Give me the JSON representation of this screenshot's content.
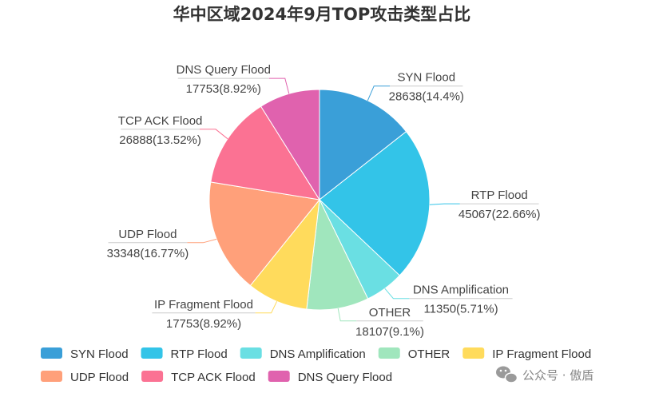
{
  "chart_data": {
    "type": "pie",
    "title": "华中区域2024年9月TOP攻击类型占比",
    "slices": [
      {
        "name": "SYN Flood",
        "value": 28638,
        "percent_label": "14.4%",
        "color": "#3a9fd8"
      },
      {
        "name": "RTP Flood",
        "value": 45067,
        "percent_label": "22.66%",
        "color": "#33c4e8"
      },
      {
        "name": "DNS Amplification",
        "value": 11350,
        "percent_label": "5.71%",
        "color": "#6adfe3"
      },
      {
        "name": "OTHER",
        "value": 18107,
        "percent_label": "9.1%",
        "color": "#a0e6bd"
      },
      {
        "name": "IP Fragment Flood",
        "value": 17753,
        "percent_label": "8.92%",
        "color": "#ffdb5c"
      },
      {
        "name": "UDP Flood",
        "value": 33348,
        "percent_label": "16.77%",
        "color": "#ffa07a"
      },
      {
        "name": "TCP ACK Flood",
        "value": 26888,
        "percent_label": "13.52%",
        "color": "#fb7293"
      },
      {
        "name": "DNS Query Flood",
        "value": 17753,
        "percent_label": "8.92%",
        "color": "#e062ae"
      }
    ],
    "legend_position": "bottom"
  },
  "watermark": {
    "text": "公众号 · 傲盾",
    "icon": "wechat-icon"
  }
}
